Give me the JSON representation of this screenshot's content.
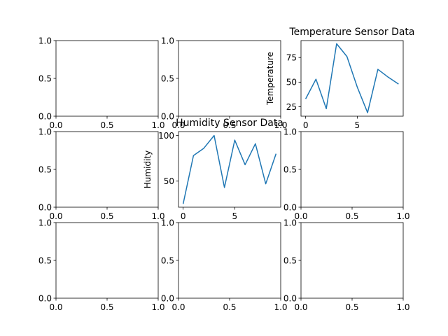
{
  "figure": {
    "background": "#ffffff",
    "line_color": "#1f77b4"
  },
  "chart_data": [
    {
      "type": "empty",
      "row": 0,
      "col": 0,
      "title": "",
      "xlabel": "",
      "ylabel": "",
      "xlim": [
        0,
        1
      ],
      "ylim": [
        0,
        1
      ],
      "xticks": [
        0,
        0.5,
        1
      ],
      "xtick_labels": [
        "0.0",
        "0.5",
        "1.0"
      ],
      "yticks": [
        0,
        0.5,
        1
      ],
      "ytick_labels": [
        "0.0",
        "0.5",
        "1.0"
      ]
    },
    {
      "type": "empty",
      "row": 0,
      "col": 1,
      "title": "",
      "xlabel": "",
      "ylabel": "",
      "xlim": [
        0,
        1
      ],
      "ylim": [
        0,
        1
      ],
      "xticks": [
        0,
        0.5,
        1
      ],
      "xtick_labels": [
        "0.0",
        "0.5",
        "1.0"
      ],
      "yticks": [
        0,
        0.5,
        1
      ],
      "ytick_labels": [
        "0.0",
        "0.5",
        "1.0"
      ]
    },
    {
      "type": "line",
      "row": 0,
      "col": 2,
      "title": "Temperature Sensor Data",
      "xlabel": "",
      "ylabel": "Temperature",
      "xlim": [
        -0.45,
        9.45
      ],
      "ylim": [
        15.4,
        92.2
      ],
      "xticks": [
        0,
        5
      ],
      "xtick_labels": [
        "0",
        "5"
      ],
      "yticks": [
        25,
        50,
        75
      ],
      "ytick_labels": [
        "25",
        "50",
        "75"
      ],
      "series": [
        {
          "x": [
            0,
            1,
            2,
            3,
            4,
            5,
            6,
            7,
            8,
            9
          ],
          "y": [
            33,
            53,
            23,
            89,
            76,
            45,
            19,
            63,
            55,
            48
          ]
        }
      ]
    },
    {
      "type": "line",
      "row": 1,
      "col": 1,
      "title": "Humidity Sensor Data",
      "xlabel": "",
      "ylabel": "Humidity",
      "xlim": [
        -0.45,
        9.45
      ],
      "ylim": [
        21.4,
        104.3
      ],
      "xticks": [
        0,
        5
      ],
      "xtick_labels": [
        "0",
        "5"
      ],
      "yticks": [
        50,
        100
      ],
      "ytick_labels": [
        "50",
        "100"
      ],
      "series": [
        {
          "x": [
            0,
            1,
            2,
            3,
            4,
            5,
            6,
            7,
            8,
            9
          ],
          "y": [
            25,
            78,
            86,
            100,
            43,
            95,
            68,
            91,
            47,
            80
          ]
        }
      ]
    },
    {
      "type": "empty",
      "row": 1,
      "col": 0,
      "title": "",
      "xlabel": "",
      "ylabel": "",
      "xlim": [
        0,
        1
      ],
      "ylim": [
        0,
        1
      ],
      "xticks": [
        0,
        0.5,
        1
      ],
      "xtick_labels": [
        "0.0",
        "0.5",
        "1.0"
      ],
      "yticks": [
        0,
        0.5,
        1
      ],
      "ytick_labels": [
        "0.0",
        "0.5",
        "1.0"
      ]
    },
    {
      "type": "empty",
      "row": 1,
      "col": 2,
      "title": "",
      "xlabel": "",
      "ylabel": "",
      "xlim": [
        0,
        1
      ],
      "ylim": [
        0,
        1
      ],
      "xticks": [
        0,
        0.5,
        1
      ],
      "xtick_labels": [
        "0.0",
        "0.5",
        "1.0"
      ],
      "yticks": [
        0,
        0.5,
        1
      ],
      "ytick_labels": [
        "0.0",
        "0.5",
        "1.0"
      ]
    },
    {
      "type": "empty",
      "row": 2,
      "col": 0,
      "title": "",
      "xlabel": "",
      "ylabel": "",
      "xlim": [
        0,
        1
      ],
      "ylim": [
        0,
        1
      ],
      "xticks": [
        0,
        0.5,
        1
      ],
      "xtick_labels": [
        "0.0",
        "0.5",
        "1.0"
      ],
      "yticks": [
        0,
        0.5,
        1
      ],
      "ytick_labels": [
        "0.0",
        "0.5",
        "1.0"
      ]
    },
    {
      "type": "empty",
      "row": 2,
      "col": 1,
      "title": "",
      "xlabel": "",
      "ylabel": "",
      "xlim": [
        0,
        1
      ],
      "ylim": [
        0,
        1
      ],
      "xticks": [
        0,
        0.5,
        1
      ],
      "xtick_labels": [
        "0.0",
        "0.5",
        "1.0"
      ],
      "yticks": [
        0,
        0.5,
        1
      ],
      "ytick_labels": [
        "0.0",
        "0.5",
        "1.0"
      ]
    },
    {
      "type": "empty",
      "row": 2,
      "col": 2,
      "title": "",
      "xlabel": "",
      "ylabel": "",
      "xlim": [
        0,
        1
      ],
      "ylim": [
        0,
        1
      ],
      "xticks": [
        0,
        0.5,
        1
      ],
      "xtick_labels": [
        "0.0",
        "0.5",
        "1.0"
      ],
      "yticks": [
        0,
        0.5,
        1
      ],
      "ytick_labels": [
        "0.0",
        "0.5",
        "1.0"
      ]
    }
  ]
}
